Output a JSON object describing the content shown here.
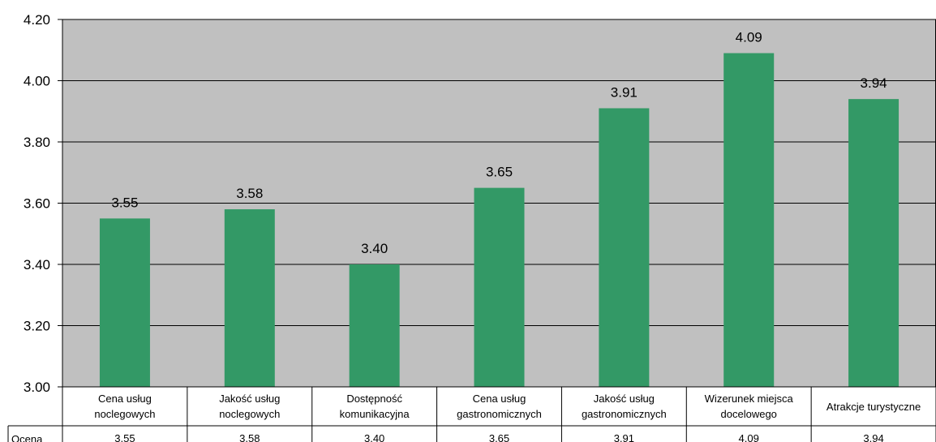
{
  "chart_data": {
    "type": "bar",
    "categories": [
      [
        "Cena usług",
        "noclegowych"
      ],
      [
        "Jakość usług",
        "noclegowych"
      ],
      [
        "Dostępność",
        "komunikacyjna"
      ],
      [
        "Cena usług",
        "gastronomicznych"
      ],
      [
        "Jakość usług",
        "gastronomicznych"
      ],
      [
        "Wizerunek miejsca",
        "docelowego"
      ],
      [
        "Atrakcje turystyczne"
      ]
    ],
    "values": [
      3.55,
      3.58,
      3.4,
      3.65,
      3.91,
      4.09,
      3.94
    ],
    "value_labels": [
      "3.55",
      "3.58",
      "3.40",
      "3.65",
      "3.91",
      "4.09",
      "3.94"
    ],
    "series_name": "Ocena",
    "ylim": [
      3.0,
      4.2
    ],
    "yticks": [
      3.0,
      3.2,
      3.4,
      3.6,
      3.8,
      4.0,
      4.2
    ],
    "ytick_labels": [
      "3.00",
      "3.20",
      "3.40",
      "3.60",
      "3.80",
      "4.00",
      "4.20"
    ],
    "grid": true,
    "data_table": true,
    "colors": {
      "bar": "#339966",
      "plot_bg": "#c0c0c0",
      "grid": "#000000"
    }
  }
}
